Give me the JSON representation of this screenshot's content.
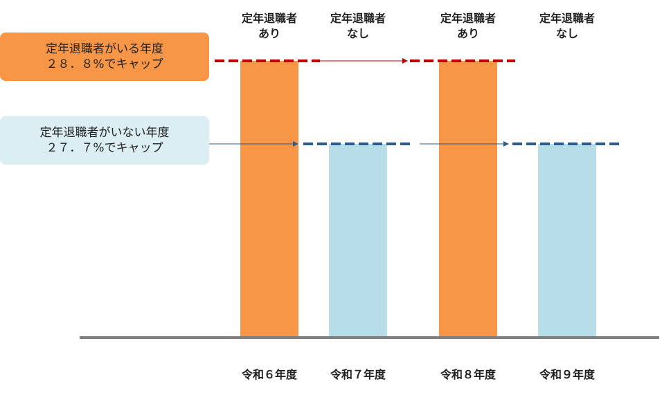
{
  "chart_data": {
    "type": "bar",
    "categories": [
      "令和６年度",
      "令和７年度",
      "令和８年度",
      "令和９年度"
    ],
    "retiree_status": [
      [
        "定年退職者",
        "あり"
      ],
      [
        "定年退職者",
        "なし"
      ],
      [
        "定年退職者",
        "あり"
      ],
      [
        "定年退職者",
        "なし"
      ]
    ],
    "values": [
      28.8,
      27.7,
      28.8,
      27.7
    ],
    "colors": [
      "#f79646",
      "#b7dde8",
      "#f79646",
      "#b7dde8"
    ],
    "ylim": [
      0,
      28.8
    ],
    "grid": false,
    "reference_lines": [
      {
        "value": 28.8,
        "color": "#c00000",
        "style": "dashed"
      },
      {
        "value": 27.7,
        "color": "#2e5b8e",
        "style": "dashed"
      }
    ]
  },
  "callouts": {
    "with_retirees": {
      "line1": "定年退職者がいる年度",
      "line2": "２８．８%でキャップ"
    },
    "without_retirees": {
      "line1": "定年退職者がいない年度",
      "line2": "２７．７%でキャップ"
    }
  },
  "colors": {
    "orange": "#f79646",
    "light_blue": "#b7dde8",
    "callout_blue": "#dbeef3",
    "cap_red": "#c00000",
    "cap_blue": "#2e5b8e",
    "axis": "#808080"
  }
}
